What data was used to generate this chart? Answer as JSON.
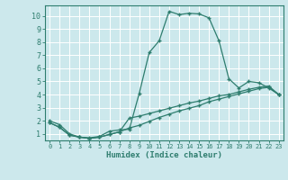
{
  "xlabel": "Humidex (Indice chaleur)",
  "bg_color": "#cce8ec",
  "grid_color": "#ffffff",
  "line_color": "#2e7d6e",
  "xlim": [
    -0.5,
    23.5
  ],
  "ylim": [
    0.5,
    10.8
  ],
  "xticks": [
    0,
    1,
    2,
    3,
    4,
    5,
    6,
    7,
    8,
    9,
    10,
    11,
    12,
    13,
    14,
    15,
    16,
    17,
    18,
    19,
    20,
    21,
    22,
    23
  ],
  "yticks": [
    1,
    2,
    3,
    4,
    5,
    6,
    7,
    8,
    9,
    10
  ],
  "line1_x": [
    0,
    1,
    2,
    3,
    4,
    5,
    6,
    7,
    8,
    9,
    10,
    11,
    12,
    13,
    14,
    15,
    16,
    17,
    18,
    19,
    20,
    21,
    22,
    23
  ],
  "line1_y": [
    2.0,
    1.7,
    1.0,
    0.75,
    0.7,
    0.8,
    1.2,
    1.3,
    1.35,
    4.1,
    7.2,
    8.1,
    10.35,
    10.1,
    10.2,
    10.15,
    9.85,
    8.1,
    5.2,
    4.5,
    5.0,
    4.9,
    4.5,
    4.0
  ],
  "line2_x": [
    0,
    1,
    2,
    3,
    4,
    5,
    6,
    7,
    8,
    9,
    10,
    11,
    12,
    13,
    14,
    15,
    16,
    17,
    18,
    19,
    20,
    21,
    22,
    23
  ],
  "line2_y": [
    1.85,
    1.5,
    0.9,
    0.75,
    0.65,
    0.75,
    0.95,
    1.15,
    2.2,
    2.35,
    2.55,
    2.75,
    2.95,
    3.15,
    3.35,
    3.5,
    3.7,
    3.9,
    4.0,
    4.2,
    4.4,
    4.55,
    4.65,
    4.0
  ],
  "line3_x": [
    0,
    1,
    2,
    3,
    4,
    5,
    6,
    7,
    8,
    9,
    10,
    11,
    12,
    13,
    14,
    15,
    16,
    17,
    18,
    19,
    20,
    21,
    22,
    23
  ],
  "line3_y": [
    1.85,
    1.5,
    0.9,
    0.75,
    0.65,
    0.75,
    0.95,
    1.15,
    1.45,
    1.65,
    1.95,
    2.25,
    2.5,
    2.75,
    2.95,
    3.15,
    3.45,
    3.65,
    3.85,
    4.05,
    4.25,
    4.45,
    4.55,
    4.0
  ]
}
